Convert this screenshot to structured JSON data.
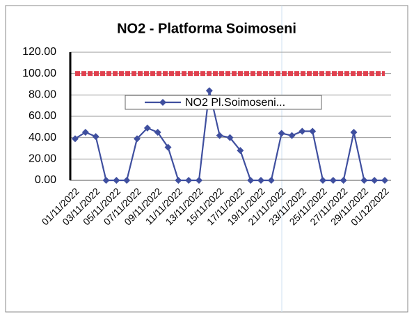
{
  "chart_data": {
    "type": "line",
    "title": "NO2 - Platforma Soimoseni",
    "categories": [
      "01/11/2022",
      null,
      "03/11/2022",
      null,
      "05/11/2022",
      null,
      "07/11/2022",
      null,
      "09/11/2022",
      null,
      "11/11/2022",
      null,
      "13/11/2022",
      null,
      "15/11/2022",
      null,
      "17/11/2022",
      null,
      "19/11/2022",
      null,
      "21/11/2022",
      null,
      "23/11/2022",
      null,
      "25/11/2022",
      null,
      "27/11/2022",
      null,
      "29/11/2022",
      null,
      "01/12/2022"
    ],
    "series": [
      {
        "name": "NO2 Pl.Soimoseni...",
        "color": "#3f4f9f",
        "values": [
          39,
          45,
          41,
          0,
          0,
          0,
          39,
          49,
          45,
          31,
          0,
          0,
          0,
          84,
          42,
          40,
          28,
          0,
          0,
          0,
          44,
          42,
          46,
          46,
          0,
          0,
          0,
          45,
          0,
          0,
          0
        ]
      },
      {
        "color": "#e0414f",
        "values": [
          100,
          100,
          100,
          100,
          100,
          100,
          100,
          100,
          100,
          100,
          100,
          100,
          100,
          100,
          100,
          100,
          100,
          100,
          100,
          100,
          100,
          100,
          100,
          100,
          100,
          100,
          100,
          100,
          100,
          100,
          100
        ]
      }
    ],
    "ylim": [
      0,
      120
    ],
    "yticks": [
      {
        "value": 0,
        "label": "0.00"
      },
      {
        "value": 20,
        "label": "20.00"
      },
      {
        "value": 40,
        "label": "40.00"
      },
      {
        "value": 60,
        "label": "60.00"
      },
      {
        "value": 80,
        "label": "80.00"
      },
      {
        "value": 100,
        "label": "100.00"
      },
      {
        "value": 120,
        "label": "120.00"
      }
    ],
    "grid": true,
    "legend": "center"
  }
}
